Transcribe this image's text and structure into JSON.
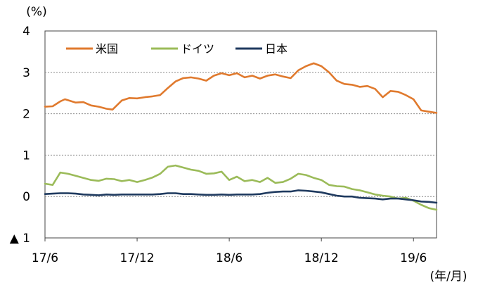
{
  "chart_data": {
    "type": "line",
    "y_unit_label": "(%)",
    "x_unit_label": "(年/月)",
    "ylim": [
      -1,
      4
    ],
    "y_ticks": [
      4,
      3,
      2,
      1,
      0,
      -1
    ],
    "y_tick_labels": [
      "4",
      "3",
      "2",
      "1",
      "0",
      "▲ 1"
    ],
    "x_ticks": [
      {
        "t": 0,
        "label": "17/6"
      },
      {
        "t": 6,
        "label": "17/12"
      },
      {
        "t": 12,
        "label": "18/6"
      },
      {
        "t": 18,
        "label": "18/12"
      },
      {
        "t": 24,
        "label": "19/6"
      }
    ],
    "x_range_months_since_2017_06": [
      0,
      25.5
    ],
    "grid": "horizontal dotted",
    "legend_position": "top-left",
    "series": [
      {
        "name": "米国",
        "color": "#E07A2E",
        "points": [
          [
            0,
            2.17
          ],
          [
            0.5,
            2.18
          ],
          [
            1,
            2.3
          ],
          [
            1.3,
            2.35
          ],
          [
            2,
            2.27
          ],
          [
            2.5,
            2.28
          ],
          [
            3,
            2.2
          ],
          [
            3.5,
            2.17
          ],
          [
            4,
            2.12
          ],
          [
            4.4,
            2.1
          ],
          [
            5,
            2.32
          ],
          [
            5.5,
            2.38
          ],
          [
            6,
            2.37
          ],
          [
            6.5,
            2.4
          ],
          [
            7,
            2.42
          ],
          [
            7.5,
            2.45
          ],
          [
            8,
            2.62
          ],
          [
            8.5,
            2.78
          ],
          [
            9,
            2.86
          ],
          [
            9.5,
            2.88
          ],
          [
            10,
            2.85
          ],
          [
            10.5,
            2.8
          ],
          [
            11,
            2.92
          ],
          [
            11.5,
            2.98
          ],
          [
            12,
            2.93
          ],
          [
            12.5,
            2.98
          ],
          [
            13,
            2.88
          ],
          [
            13.5,
            2.92
          ],
          [
            14,
            2.85
          ],
          [
            14.5,
            2.92
          ],
          [
            15,
            2.95
          ],
          [
            15.5,
            2.9
          ],
          [
            16,
            2.86
          ],
          [
            16.5,
            3.05
          ],
          [
            17,
            3.15
          ],
          [
            17.5,
            3.22
          ],
          [
            18,
            3.15
          ],
          [
            18.5,
            3.0
          ],
          [
            19,
            2.8
          ],
          [
            19.5,
            2.72
          ],
          [
            20,
            2.7
          ],
          [
            20.5,
            2.65
          ],
          [
            21,
            2.67
          ],
          [
            21.5,
            2.6
          ],
          [
            22,
            2.4
          ],
          [
            22.5,
            2.55
          ],
          [
            23,
            2.53
          ],
          [
            23.5,
            2.45
          ],
          [
            24,
            2.35
          ],
          [
            24.5,
            2.08
          ],
          [
            25,
            2.05
          ],
          [
            25.5,
            2.02
          ]
        ]
      },
      {
        "name": "ドイツ",
        "color": "#9BBB59",
        "points": [
          [
            0,
            0.31
          ],
          [
            0.5,
            0.28
          ],
          [
            1,
            0.58
          ],
          [
            1.5,
            0.55
          ],
          [
            2,
            0.5
          ],
          [
            2.5,
            0.45
          ],
          [
            3,
            0.4
          ],
          [
            3.5,
            0.38
          ],
          [
            4,
            0.43
          ],
          [
            4.5,
            0.42
          ],
          [
            5,
            0.37
          ],
          [
            5.5,
            0.4
          ],
          [
            6,
            0.35
          ],
          [
            6.5,
            0.4
          ],
          [
            7,
            0.46
          ],
          [
            7.5,
            0.55
          ],
          [
            8,
            0.72
          ],
          [
            8.5,
            0.75
          ],
          [
            9,
            0.7
          ],
          [
            9.5,
            0.65
          ],
          [
            10,
            0.62
          ],
          [
            10.5,
            0.55
          ],
          [
            11,
            0.56
          ],
          [
            11.5,
            0.6
          ],
          [
            12,
            0.4
          ],
          [
            12.5,
            0.48
          ],
          [
            13,
            0.37
          ],
          [
            13.5,
            0.4
          ],
          [
            14,
            0.35
          ],
          [
            14.5,
            0.45
          ],
          [
            15,
            0.33
          ],
          [
            15.5,
            0.35
          ],
          [
            16,
            0.43
          ],
          [
            16.5,
            0.55
          ],
          [
            17,
            0.52
          ],
          [
            17.5,
            0.45
          ],
          [
            18,
            0.4
          ],
          [
            18.5,
            0.28
          ],
          [
            19,
            0.25
          ],
          [
            19.5,
            0.24
          ],
          [
            20,
            0.18
          ],
          [
            20.5,
            0.15
          ],
          [
            21,
            0.1
          ],
          [
            21.5,
            0.05
          ],
          [
            22,
            0.02
          ],
          [
            22.5,
            0.0
          ],
          [
            23,
            -0.05
          ],
          [
            23.5,
            -0.03
          ],
          [
            24,
            -0.1
          ],
          [
            24.5,
            -0.2
          ],
          [
            25,
            -0.28
          ],
          [
            25.5,
            -0.32
          ]
        ]
      },
      {
        "name": "日本",
        "color": "#1F3A5F",
        "points": [
          [
            0,
            0.06
          ],
          [
            0.5,
            0.07
          ],
          [
            1,
            0.08
          ],
          [
            1.5,
            0.08
          ],
          [
            2,
            0.07
          ],
          [
            2.5,
            0.05
          ],
          [
            3,
            0.04
          ],
          [
            3.5,
            0.03
          ],
          [
            4,
            0.05
          ],
          [
            4.5,
            0.04
          ],
          [
            5,
            0.05
          ],
          [
            5.5,
            0.05
          ],
          [
            6,
            0.05
          ],
          [
            6.5,
            0.05
          ],
          [
            7,
            0.05
          ],
          [
            7.5,
            0.06
          ],
          [
            8,
            0.08
          ],
          [
            8.5,
            0.08
          ],
          [
            9,
            0.06
          ],
          [
            9.5,
            0.06
          ],
          [
            10,
            0.05
          ],
          [
            10.5,
            0.04
          ],
          [
            11,
            0.04
          ],
          [
            11.5,
            0.05
          ],
          [
            12,
            0.04
          ],
          [
            12.5,
            0.05
          ],
          [
            13,
            0.05
          ],
          [
            13.5,
            0.05
          ],
          [
            14,
            0.06
          ],
          [
            14.5,
            0.09
          ],
          [
            15,
            0.11
          ],
          [
            15.5,
            0.12
          ],
          [
            16,
            0.12
          ],
          [
            16.5,
            0.15
          ],
          [
            17,
            0.14
          ],
          [
            17.5,
            0.12
          ],
          [
            18,
            0.1
          ],
          [
            18.5,
            0.06
          ],
          [
            19,
            0.02
          ],
          [
            19.5,
            0.0
          ],
          [
            20,
            0.0
          ],
          [
            20.5,
            -0.03
          ],
          [
            21,
            -0.04
          ],
          [
            21.5,
            -0.05
          ],
          [
            22,
            -0.07
          ],
          [
            22.5,
            -0.05
          ],
          [
            23,
            -0.05
          ],
          [
            23.5,
            -0.07
          ],
          [
            24,
            -0.09
          ],
          [
            24.5,
            -0.12
          ],
          [
            25,
            -0.13
          ],
          [
            25.5,
            -0.15
          ]
        ]
      }
    ]
  }
}
